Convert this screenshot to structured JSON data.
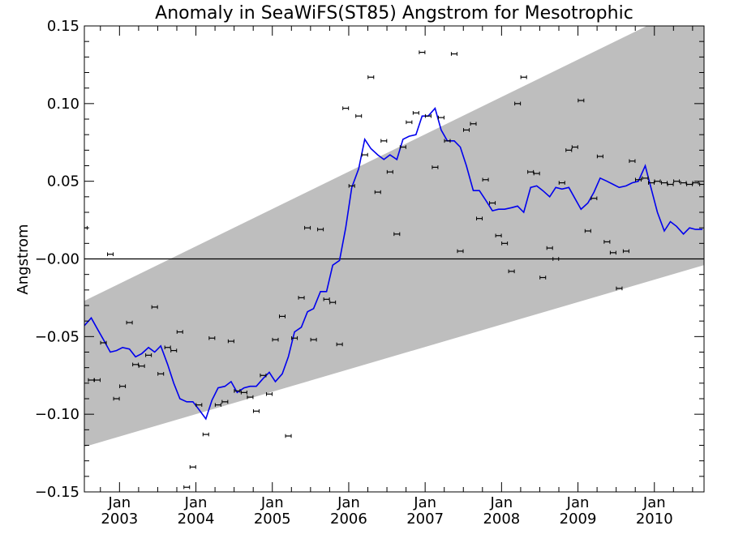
{
  "chart_data": {
    "type": "line",
    "title": "Anomaly in SeaWiFS(ST85) Angstrom for Mesotrophic",
    "xlabel": "",
    "ylabel": "Angstrom",
    "xlim": [
      2002.54,
      2010.65
    ],
    "ylim": [
      -0.15,
      0.15
    ],
    "y_ticks": [
      -0.15,
      -0.1,
      -0.05,
      0.0,
      0.05,
      0.1,
      0.15
    ],
    "y_tick_labels": [
      "−0.15",
      "−0.10",
      "−0.05",
      "−0.00",
      "0.05",
      "0.10",
      "0.15"
    ],
    "x_ticks": [
      {
        "x": 2003.0,
        "line1": "Jan",
        "line2": "2003"
      },
      {
        "x": 2004.0,
        "line1": "Jan",
        "line2": "2004"
      },
      {
        "x": 2005.0,
        "line1": "Jan",
        "line2": "2005"
      },
      {
        "x": 2006.0,
        "line1": "Jan",
        "line2": "2006"
      },
      {
        "x": 2007.0,
        "line1": "Jan",
        "line2": "2007"
      },
      {
        "x": 2008.0,
        "line1": "Jan",
        "line2": "2008"
      },
      {
        "x": 2009.0,
        "line1": "Jan",
        "line2": "2009"
      },
      {
        "x": 2010.0,
        "line1": "Jan",
        "line2": "2010"
      }
    ],
    "trend_band": {
      "color": "#bebebe",
      "upper": [
        [
          2002.54,
          -0.027
        ],
        [
          2010.65,
          0.168
        ]
      ],
      "lower": [
        [
          2002.54,
          -0.121
        ],
        [
          2010.65,
          -0.004
        ]
      ]
    },
    "zero_line": 0.0,
    "series": [
      {
        "type": "line",
        "color": "#0000ee",
        "x": [
          2002.54,
          2002.63,
          2002.71,
          2002.79,
          2002.88,
          2002.96,
          2003.04,
          2003.13,
          2003.21,
          2003.29,
          2003.38,
          2003.46,
          2003.54,
          2003.63,
          2003.71,
          2003.79,
          2003.88,
          2003.96,
          2004.04,
          2004.13,
          2004.21,
          2004.29,
          2004.38,
          2004.46,
          2004.54,
          2004.63,
          2004.71,
          2004.79,
          2004.88,
          2004.96,
          2005.0,
          2005.04,
          2005.13,
          2005.21,
          2005.29,
          2005.38,
          2005.46,
          2005.54,
          2005.63,
          2005.71,
          2005.79,
          2005.88,
          2005.96,
          2006.04,
          2006.13,
          2006.21,
          2006.29,
          2006.38,
          2006.46,
          2006.54,
          2006.63,
          2006.71,
          2006.79,
          2006.88,
          2006.96,
          2007.04,
          2007.13,
          2007.21,
          2007.29,
          2007.38,
          2007.46,
          2007.54,
          2007.63,
          2007.71,
          2007.79,
          2007.88,
          2007.96,
          2008.04,
          2008.13,
          2008.21,
          2008.29,
          2008.38,
          2008.46,
          2008.54,
          2008.63,
          2008.71,
          2008.79,
          2008.88,
          2008.96,
          2009.04,
          2009.13,
          2009.21,
          2009.29,
          2009.38,
          2009.46,
          2009.54,
          2009.63,
          2009.71,
          2009.79,
          2009.88,
          2009.96,
          2010.04,
          2010.13,
          2010.21,
          2010.29,
          2010.38,
          2010.46,
          2010.54,
          2010.63
        ],
        "y": [
          -0.043,
          -0.038,
          -0.045,
          -0.052,
          -0.06,
          -0.059,
          -0.057,
          -0.058,
          -0.063,
          -0.061,
          -0.057,
          -0.06,
          -0.056,
          -0.068,
          -0.08,
          -0.09,
          -0.092,
          -0.092,
          -0.097,
          -0.103,
          -0.091,
          -0.083,
          -0.082,
          -0.079,
          -0.086,
          -0.083,
          -0.082,
          -0.082,
          -0.077,
          -0.073,
          -0.076,
          -0.079,
          -0.074,
          -0.063,
          -0.047,
          -0.044,
          -0.034,
          -0.032,
          -0.021,
          -0.021,
          -0.004,
          -0.001,
          0.02,
          0.046,
          0.058,
          0.077,
          0.071,
          0.067,
          0.064,
          0.067,
          0.064,
          0.077,
          0.079,
          0.08,
          0.092,
          0.092,
          0.097,
          0.083,
          0.076,
          0.076,
          0.072,
          0.06,
          0.044,
          0.044,
          0.038,
          0.031,
          0.032,
          0.032,
          0.033,
          0.034,
          0.03,
          0.046,
          0.047,
          0.044,
          0.04,
          0.046,
          0.045,
          0.046,
          0.039,
          0.032,
          0.036,
          0.043,
          0.052,
          0.05,
          0.048,
          0.046,
          0.047,
          0.049,
          0.05,
          0.06,
          0.045,
          0.03,
          0.018,
          0.024,
          0.021,
          0.016,
          0.02,
          0.019,
          0.019
        ]
      },
      {
        "type": "scatter",
        "color": "#000000",
        "x": [
          2002.54,
          2002.63,
          2002.71,
          2002.79,
          2002.88,
          2002.96,
          2003.04,
          2003.13,
          2003.21,
          2003.29,
          2003.38,
          2003.46,
          2003.54,
          2003.63,
          2003.71,
          2003.79,
          2003.88,
          2003.96,
          2004.04,
          2004.13,
          2004.21,
          2004.29,
          2004.38,
          2004.46,
          2004.54,
          2004.63,
          2004.71,
          2004.79,
          2004.88,
          2004.96,
          2005.04,
          2005.13,
          2005.21,
          2005.29,
          2005.38,
          2005.46,
          2005.54,
          2005.63,
          2005.71,
          2005.79,
          2005.88,
          2005.96,
          2006.04,
          2006.13,
          2006.21,
          2006.29,
          2006.38,
          2006.46,
          2006.54,
          2006.63,
          2006.71,
          2006.79,
          2006.88,
          2006.96,
          2007.04,
          2007.13,
          2007.21,
          2007.29,
          2007.38,
          2007.46,
          2007.54,
          2007.63,
          2007.71,
          2007.79,
          2007.88,
          2007.96,
          2008.04,
          2008.13,
          2008.21,
          2008.29,
          2008.38,
          2008.46,
          2008.54,
          2008.63,
          2008.71,
          2008.79,
          2008.88,
          2008.96,
          2009.04,
          2009.13,
          2009.21,
          2009.29,
          2009.38,
          2009.46,
          2009.54,
          2009.63,
          2009.71,
          2009.79,
          2009.88,
          2009.96,
          2010.04,
          2010.13,
          2010.21,
          2010.29,
          2010.38,
          2010.46,
          2010.54,
          2010.63
        ],
        "y": [
          0.02,
          -0.078,
          -0.078,
          -0.054,
          0.003,
          -0.09,
          -0.082,
          -0.041,
          -0.068,
          -0.069,
          -0.062,
          -0.031,
          -0.074,
          -0.057,
          -0.059,
          -0.047,
          -0.147,
          -0.134,
          -0.094,
          -0.113,
          -0.051,
          -0.094,
          -0.092,
          -0.053,
          -0.085,
          -0.086,
          -0.089,
          -0.098,
          -0.075,
          -0.087,
          -0.052,
          -0.037,
          -0.114,
          -0.051,
          -0.025,
          0.02,
          -0.052,
          0.019,
          -0.026,
          -0.028,
          -0.055,
          0.097,
          0.047,
          0.092,
          0.067,
          0.117,
          0.043,
          0.076,
          0.056,
          0.016,
          0.072,
          0.088,
          0.094,
          0.133,
          0.092,
          0.059,
          0.091,
          0.076,
          0.132,
          0.005,
          0.083,
          0.087,
          0.026,
          0.051,
          0.036,
          0.015,
          0.01,
          -0.008,
          0.1,
          0.117,
          0.056,
          0.055,
          -0.012,
          0.007,
          0.0,
          0.049,
          0.07,
          0.072,
          0.102,
          0.018,
          0.039,
          0.066,
          0.011,
          0.004,
          -0.019,
          0.005,
          0.063,
          0.051,
          0.052,
          0.049,
          0.05,
          0.049,
          0.048,
          0.05,
          0.049,
          0.048,
          0.049,
          0.048
        ],
        "error": 0.0012
      }
    ]
  }
}
